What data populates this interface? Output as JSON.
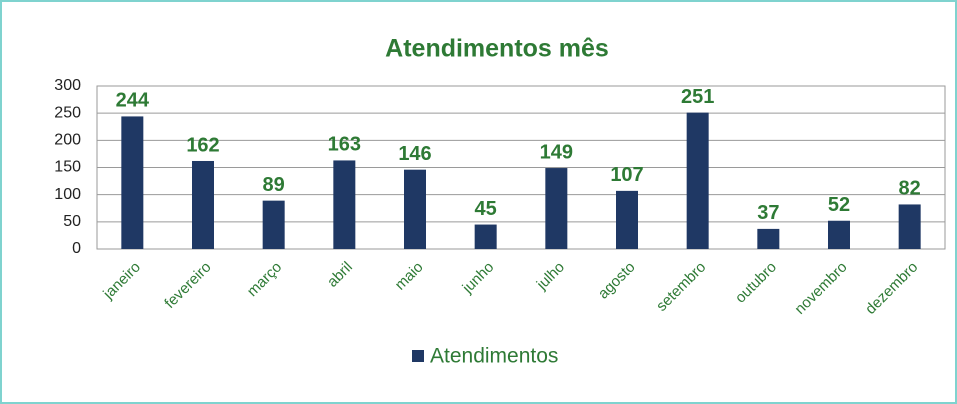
{
  "chart_data": {
    "type": "bar",
    "title": "Atendimentos mês",
    "categories": [
      "janeiro",
      "fevereiro",
      "março",
      "abril",
      "maio",
      "junho",
      "julho",
      "agosto",
      "setembro",
      "outubro",
      "novembro",
      "dezembro"
    ],
    "series": [
      {
        "name": "Atendimentos",
        "color": "#1f3864",
        "values": [
          244,
          162,
          89,
          163,
          146,
          45,
          149,
          107,
          251,
          37,
          52,
          82
        ]
      }
    ],
    "ylim": [
      0,
      300
    ],
    "yticks": [
      0,
      50,
      100,
      150,
      200,
      250,
      300
    ],
    "grid": true,
    "legend": "bottom"
  }
}
